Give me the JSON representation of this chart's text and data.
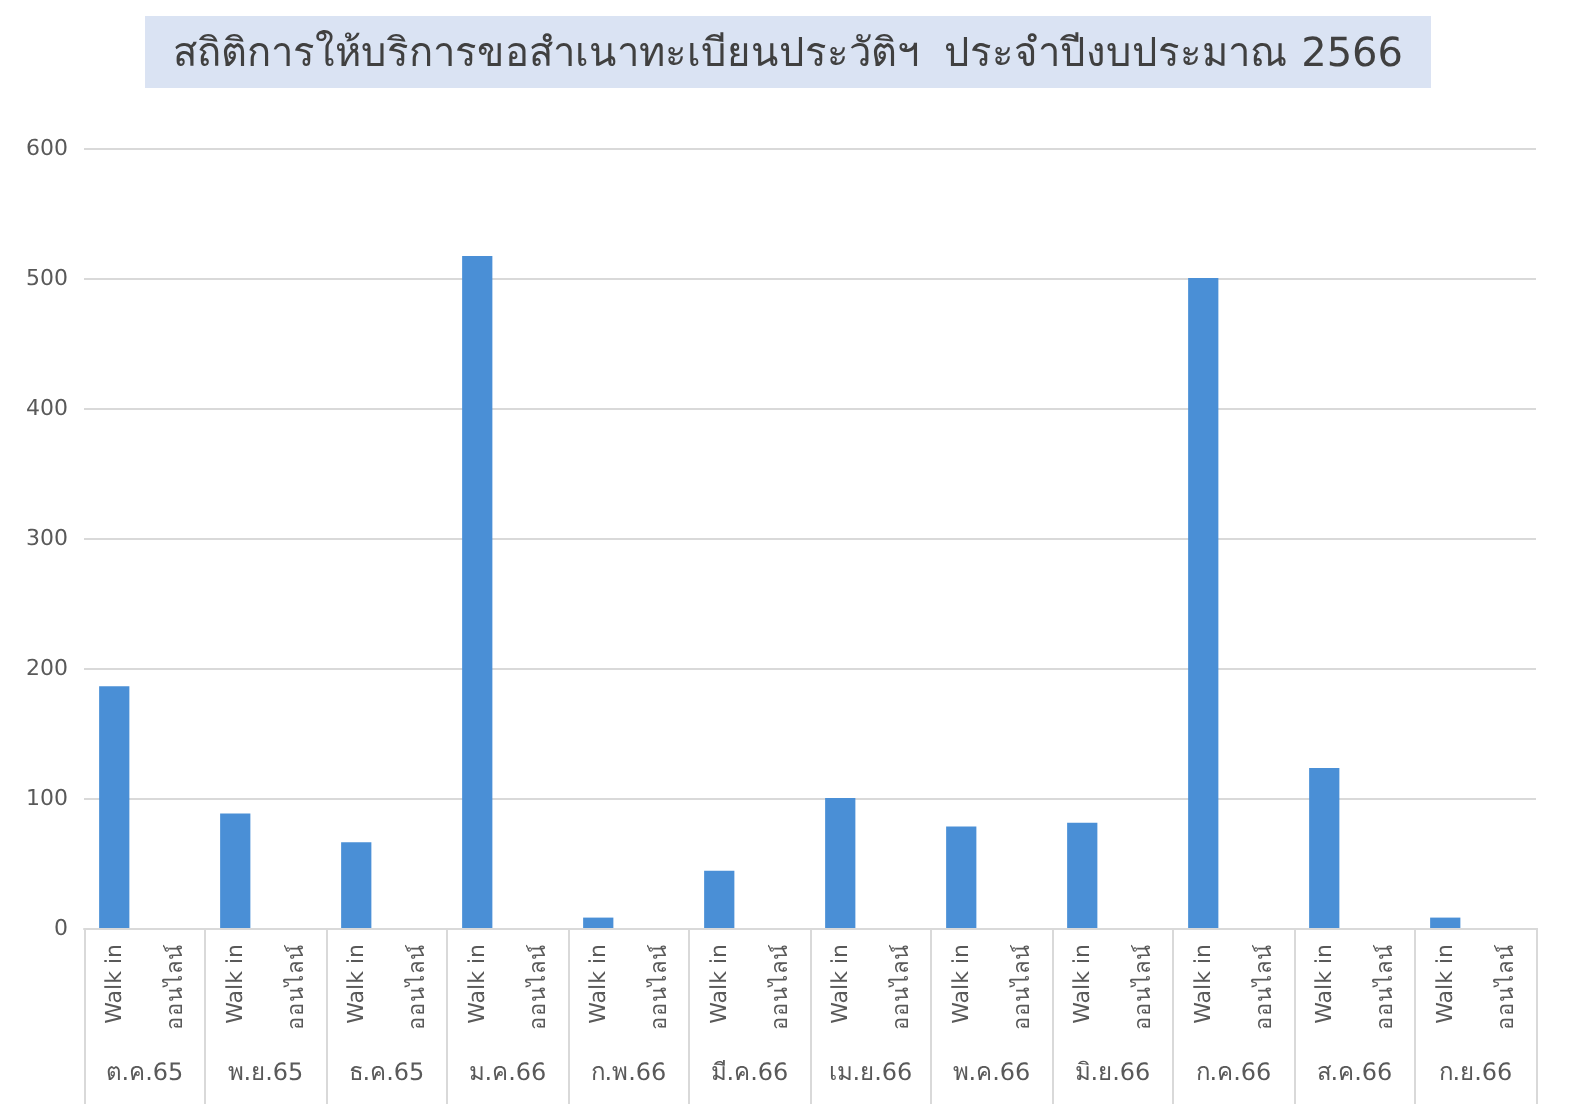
{
  "chart_data": {
    "type": "bar",
    "title": "สถิติการให้บริการขอสำเนาทะเบียนประวัติฯ  ประจำปีงบประมาณ 2566",
    "categories": [
      "ต.ค.65",
      "พ.ย.65",
      "ธ.ค.65",
      "ม.ค.66",
      "ก.พ.66",
      "มี.ค.66",
      "เม.ย.66",
      "พ.ค.66",
      "มิ.ย.66",
      "ก.ค.66",
      "ส.ค.66",
      "ก.ย.66"
    ],
    "series": [
      {
        "name": "Walk in",
        "color": "#4a8fd6",
        "values": [
          186,
          88,
          66,
          517,
          8,
          44,
          100,
          78,
          81,
          500,
          123,
          8
        ]
      },
      {
        "name": "ออนไลน์",
        "values": [
          0,
          0,
          0,
          0,
          0,
          0,
          0,
          0,
          0,
          0,
          0,
          0
        ]
      }
    ],
    "ylim": [
      0,
      600
    ],
    "yticks": [
      0,
      100,
      200,
      300,
      400,
      500,
      600
    ],
    "grid": "y",
    "legend": false
  }
}
